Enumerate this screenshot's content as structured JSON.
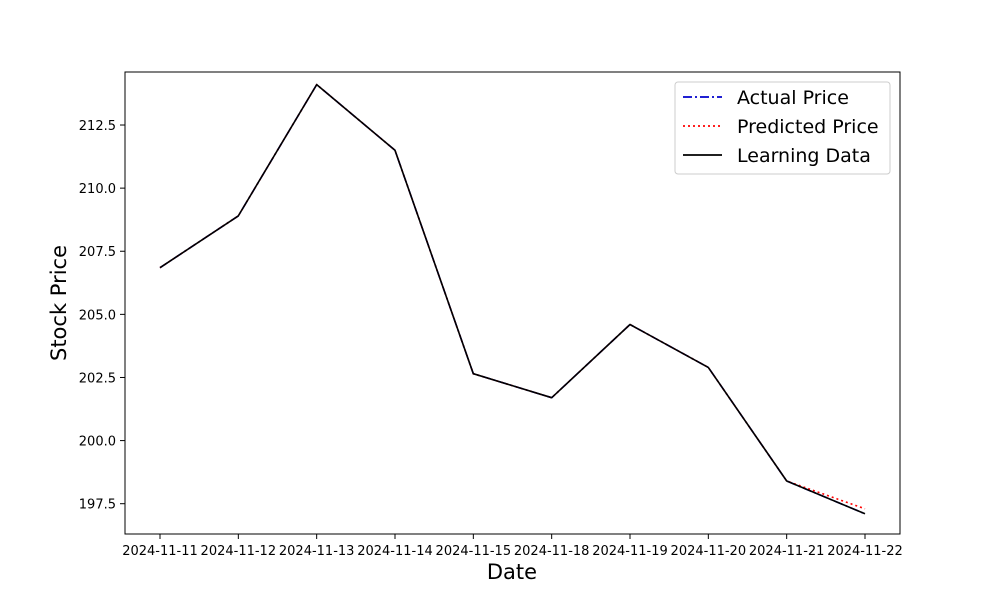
{
  "chart_data": {
    "type": "line",
    "xlabel": "Date",
    "ylabel": "Stock Price",
    "x": [
      "2024-11-11",
      "2024-11-12",
      "2024-11-13",
      "2024-11-14",
      "2024-11-15",
      "2024-11-18",
      "2024-11-19",
      "2024-11-20",
      "2024-11-21",
      "2024-11-22"
    ],
    "ylim": [
      196.3,
      214.6
    ],
    "yticks": [
      197.5,
      200.0,
      202.5,
      205.0,
      207.5,
      210.0,
      212.5
    ],
    "ytick_labels": [
      "197.5",
      "200.0",
      "202.5",
      "205.0",
      "207.5",
      "210.0",
      "212.5"
    ],
    "grid": false,
    "legend_position": "top-right",
    "series": [
      {
        "name": "Actual Price",
        "color": "#0000cc",
        "linestyle": "dashdot",
        "values": [
          206.85,
          208.9,
          214.1,
          211.5,
          202.65,
          201.7,
          204.6,
          202.9,
          198.4,
          197.1
        ]
      },
      {
        "name": "Predicted Price",
        "color": "#ff0000",
        "linestyle": "dotted",
        "values": [
          206.85,
          208.9,
          214.1,
          211.5,
          202.65,
          201.7,
          204.6,
          202.9,
          198.4,
          197.3
        ]
      },
      {
        "name": "Learning Data",
        "color": "#000000",
        "linestyle": "solid",
        "values": [
          206.85,
          208.9,
          214.1,
          211.5,
          202.65,
          201.7,
          204.6,
          202.9,
          198.4,
          197.1
        ]
      }
    ]
  }
}
